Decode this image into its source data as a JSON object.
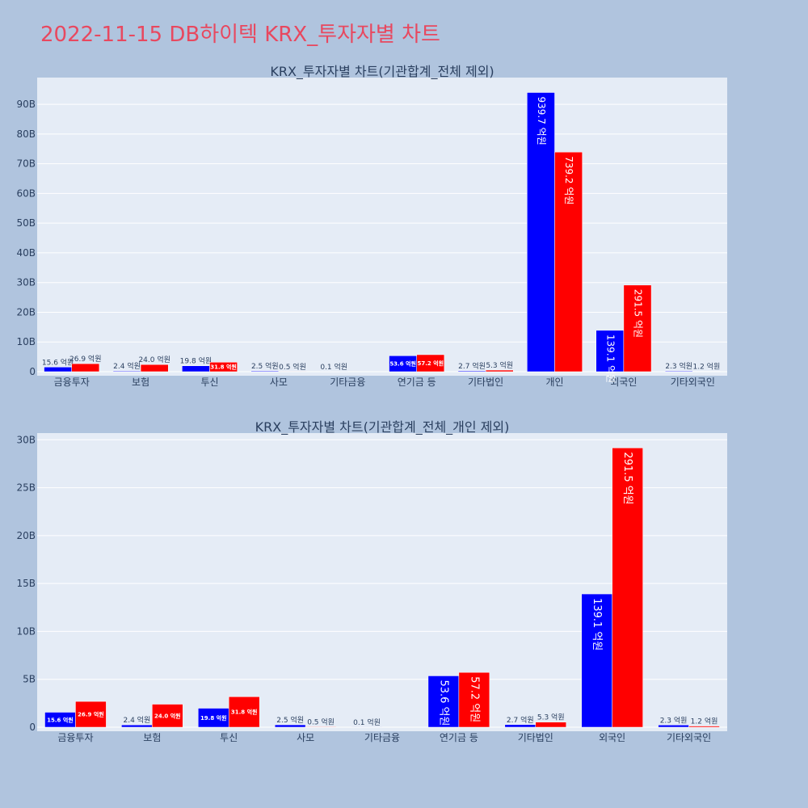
{
  "page_title": "2022-11-15 DB하이텍 KRX_투자자별 차트",
  "colors": {
    "background": "#b0c4de",
    "plot_bg": "#e5ecf6",
    "title": "#e8485f",
    "buy": "#0000ff",
    "sell": "#ff0000",
    "text": "#2a3f5f"
  },
  "chart_data": [
    {
      "type": "bar",
      "title": "KRX_투자자별 차트(기관합계_전체 제외)",
      "categories": [
        "금융투자",
        "보험",
        "투신",
        "사모",
        "기타금융",
        "연기금 등",
        "기타법인",
        "개인",
        "외국인",
        "기타외국인"
      ],
      "series": [
        {
          "name": "buy",
          "color": "#0000ff",
          "values": [
            1.56,
            0.24,
            1.98,
            0.25,
            0.01,
            5.36,
            0.27,
            93.97,
            13.91,
            0.23
          ],
          "labels": [
            "15.6 억원",
            "2.4 억원",
            "19.8 억원",
            "2.5 억원",
            "0.1 억원",
            "53.6 억원",
            "2.7 억원",
            "939.7 억원",
            "139.1 억원",
            "2.3 억원"
          ]
        },
        {
          "name": "sell",
          "color": "#ff0000",
          "values": [
            2.69,
            2.4,
            3.18,
            0.05,
            0,
            5.72,
            0.53,
            73.92,
            29.15,
            0.12
          ],
          "labels": [
            "26.9 억원",
            "24.0 억원",
            "31.8 억원",
            "0.5 억원",
            "",
            "57.2 억원",
            "5.3 억원",
            "739.2 억원",
            "291.5 억원",
            "1.2 억원"
          ]
        }
      ],
      "ylim": [
        0,
        99
      ],
      "yticks": [
        0,
        10,
        20,
        30,
        40,
        50,
        60,
        70,
        80,
        90
      ],
      "ytick_labels": [
        "0",
        "10B",
        "20B",
        "30B",
        "40B",
        "50B",
        "60B",
        "70B",
        "80B",
        "90B"
      ],
      "xlabel": "",
      "ylabel": ""
    },
    {
      "type": "bar",
      "title": "KRX_투자자별 차트(기관합계_전체_개인 제외)",
      "categories": [
        "금융투자",
        "보험",
        "투신",
        "사모",
        "기타금융",
        "연기금 등",
        "기타법인",
        "외국인",
        "기타외국인"
      ],
      "series": [
        {
          "name": "buy",
          "color": "#0000ff",
          "values": [
            1.56,
            0.24,
            1.98,
            0.25,
            0.01,
            5.36,
            0.27,
            13.91,
            0.23
          ],
          "labels": [
            "15.6 억원",
            "2.4 억원",
            "19.8 억원",
            "2.5 억원",
            "0.1 억원",
            "53.6 억원",
            "2.7 억원",
            "139.1 억원",
            "2.3 억원"
          ]
        },
        {
          "name": "sell",
          "color": "#ff0000",
          "values": [
            2.69,
            2.4,
            3.18,
            0.05,
            0,
            5.72,
            0.53,
            29.15,
            0.12
          ],
          "labels": [
            "26.9 억원",
            "24.0 억원",
            "31.8 억원",
            "0.5 억원",
            "",
            "57.2 억원",
            "5.3 억원",
            "291.5 억원",
            "1.2 억원"
          ]
        }
      ],
      "ylim": [
        0,
        30.7
      ],
      "yticks": [
        0,
        5,
        10,
        15,
        20,
        25,
        30
      ],
      "ytick_labels": [
        "0",
        "5B",
        "10B",
        "15B",
        "20B",
        "25B",
        "30B"
      ],
      "xlabel": "",
      "ylabel": ""
    }
  ]
}
